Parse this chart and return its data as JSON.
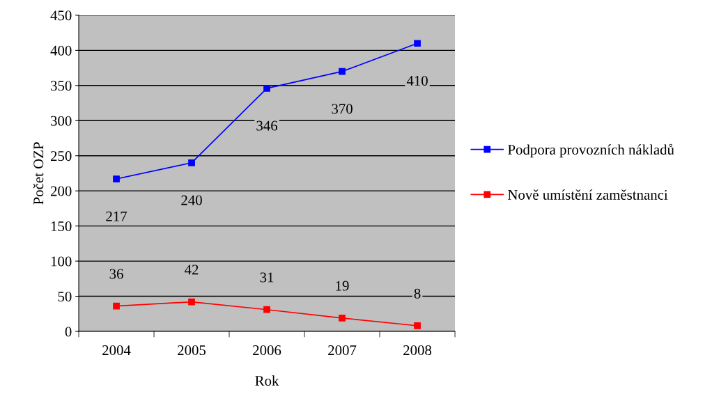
{
  "chart_data": {
    "type": "line",
    "xlabel": "Rok",
    "ylabel": "Počet OZP",
    "categories": [
      "2004",
      "2005",
      "2006",
      "2007",
      "2008"
    ],
    "series": [
      {
        "name": "Podpora provozních nákladů",
        "color": "#0000ff",
        "values": [
          217,
          240,
          346,
          370,
          410
        ]
      },
      {
        "name": "Nově umístění zaměstnanci",
        "color": "#ff0000",
        "values": [
          36,
          42,
          31,
          19,
          8
        ]
      }
    ],
    "ylim": [
      0,
      450
    ],
    "yticks": [
      0,
      50,
      100,
      150,
      200,
      250,
      300,
      350,
      400,
      450
    ],
    "grid": "y",
    "legend": "right",
    "marker": "square",
    "line_style": "solid",
    "data_labels": true
  }
}
